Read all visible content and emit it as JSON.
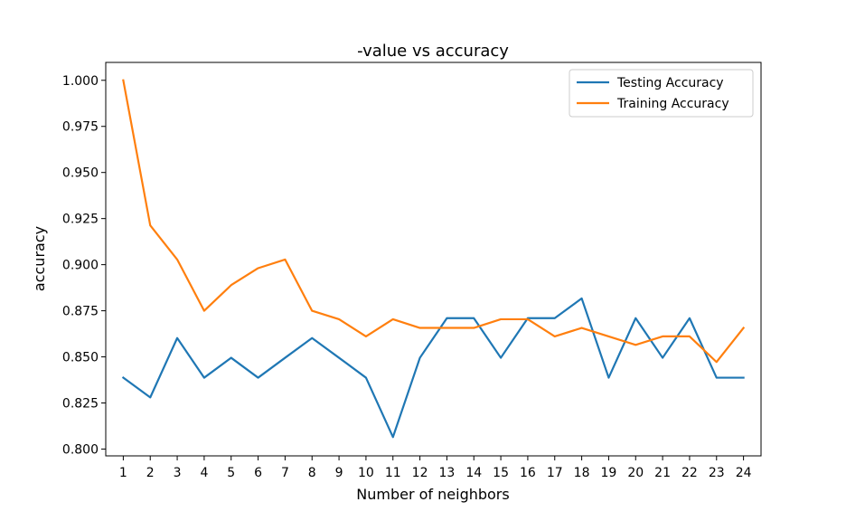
{
  "chart_data": {
    "type": "line",
    "title": "-value vs accuracy",
    "xlabel": "Number of neighbors",
    "ylabel": "accuracy",
    "x": [
      1,
      2,
      3,
      4,
      5,
      6,
      7,
      8,
      9,
      10,
      11,
      12,
      13,
      14,
      15,
      16,
      17,
      18,
      19,
      20,
      21,
      22,
      23,
      24
    ],
    "xlim": [
      0.35,
      24.65
    ],
    "ylim": [
      0.7963,
      1.0097
    ],
    "yticks": [
      0.8,
      0.825,
      0.85,
      0.875,
      0.9,
      0.925,
      0.95,
      0.975,
      1.0
    ],
    "ytick_labels": [
      "0.800",
      "0.825",
      "0.850",
      "0.875",
      "0.900",
      "0.925",
      "0.950",
      "0.975",
      "1.000"
    ],
    "grid": false,
    "legend_position": "top-right",
    "series": [
      {
        "name": "Testing Accuracy",
        "color": "#1f77b4",
        "values": [
          0.8387,
          0.828,
          0.8602,
          0.8387,
          0.8495,
          0.8387,
          0.8495,
          0.8602,
          0.8495,
          0.8387,
          0.8065,
          0.8495,
          0.871,
          0.871,
          0.8495,
          0.871,
          0.871,
          0.8817,
          0.8387,
          0.871,
          0.8495,
          0.871,
          0.8387,
          0.8387
        ]
      },
      {
        "name": "Training Accuracy",
        "color": "#ff7f0e",
        "values": [
          1.0,
          0.9213,
          0.9028,
          0.875,
          0.8889,
          0.8981,
          0.9028,
          0.875,
          0.8704,
          0.8611,
          0.8704,
          0.8657,
          0.8657,
          0.8657,
          0.8704,
          0.8704,
          0.8611,
          0.8657,
          0.8611,
          0.8565,
          0.8611,
          0.8611,
          0.8472,
          0.8657
        ]
      }
    ]
  }
}
